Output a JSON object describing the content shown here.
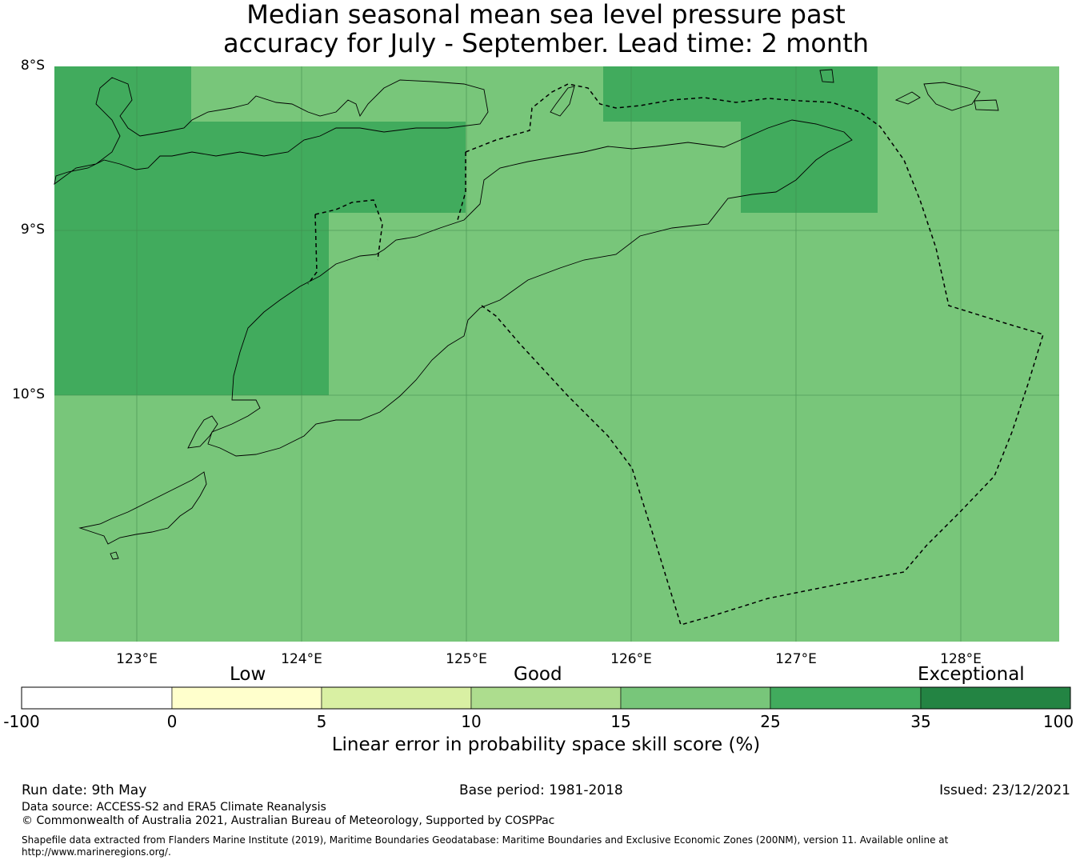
{
  "title": {
    "line1": "Median seasonal mean sea level pressure past",
    "line2": "accuracy for July - September. Lead time: 2 month"
  },
  "map": {
    "background_color": "#78c67a",
    "lat_labels": [
      "8°S",
      "9°S",
      "10°S"
    ],
    "lon_labels": [
      "123°E",
      "124°E",
      "125°E",
      "126°E",
      "127°E",
      "128°E"
    ],
    "regions": [
      {
        "name": "skill-25-35-region",
        "color": "#41ab5d"
      },
      {
        "name": "skill-15-25-region",
        "color": "#78c67a"
      }
    ]
  },
  "legend": {
    "categories": [
      "Low",
      "Good",
      "Exceptional"
    ],
    "ticks": [
      "-100",
      "0",
      "5",
      "10",
      "15",
      "25",
      "35",
      "100"
    ],
    "colors": [
      "#ffffff",
      "#ffffcc",
      "#d9f0a3",
      "#addd8e",
      "#78c67a",
      "#41ab5d",
      "#238443"
    ],
    "label": "Linear error in probability space skill score (%)"
  },
  "footer": {
    "run_date": "Run date: 9th May",
    "base_period": "Base period: 1981-2018",
    "issued": "Issued: 23/12/2021",
    "data_source": "Data source: ACCESS-S2 and ERA5 Climate Reanalysis",
    "copyright": "© Commonwealth of Australia 2021, Australian Bureau of Meteorology, Supported by COSPPac",
    "shapefile": "Shapefile data extracted from Flanders Marine Institute (2019), Maritime Boundaries Geodatabase: Maritime Boundaries and Exclusive Economic Zones (200NM), version 11. Available online at",
    "shapefile_url": "http://www.marineregions.org/."
  }
}
